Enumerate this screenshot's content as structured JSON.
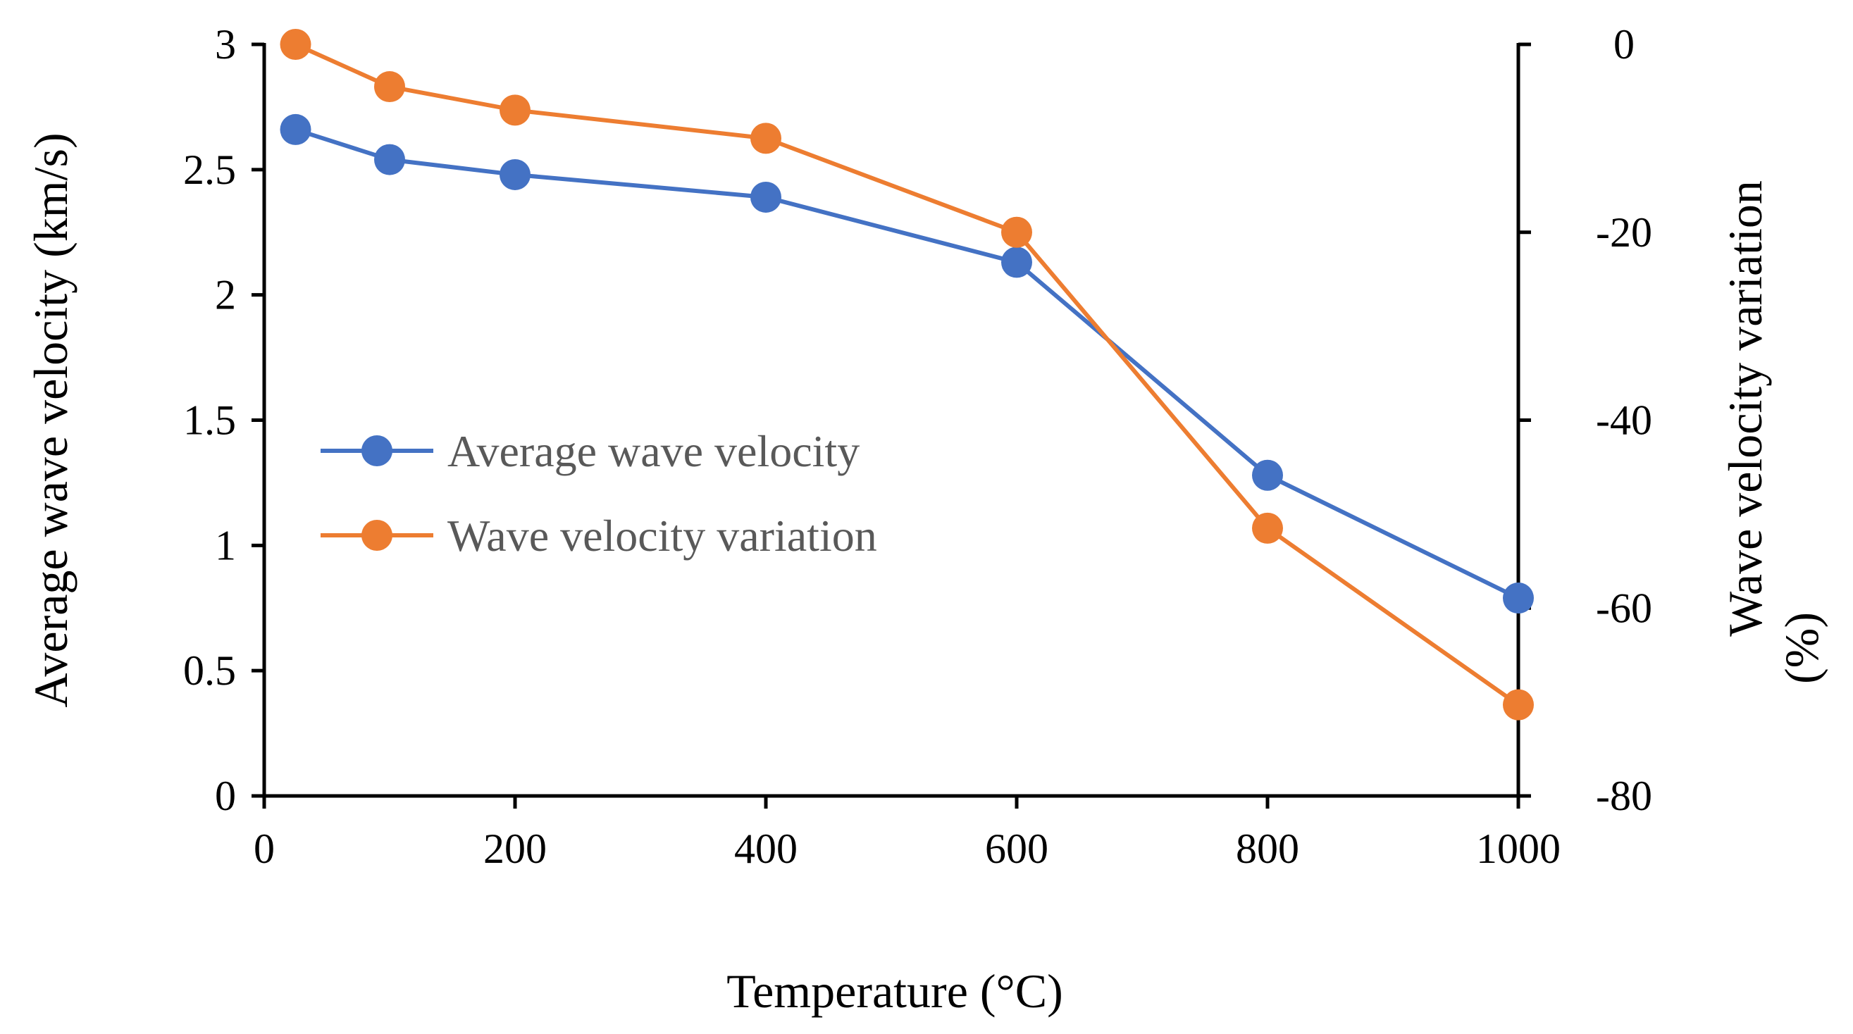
{
  "chart_data": {
    "type": "line",
    "x_axis": {
      "title": "Temperature (°C)",
      "range": [
        0,
        1000
      ],
      "ticks": [
        0,
        200,
        400,
        600,
        800,
        1000
      ],
      "tick_labels": [
        "0",
        "200",
        "400",
        "600",
        "800",
        "1000"
      ]
    },
    "y_axis_left": {
      "title": "Average wave velocity (km/s)",
      "range": [
        0,
        3
      ],
      "ticks": [
        0,
        0.5,
        1,
        1.5,
        2,
        2.5,
        3
      ],
      "tick_labels": [
        "0",
        "0.5",
        "1",
        "1.5",
        "2",
        "2.5",
        "3"
      ]
    },
    "y_axis_right": {
      "title_line1": "Wave velocity variation",
      "title_line2": "(%)",
      "range": [
        -80,
        0
      ],
      "ticks": [
        -80,
        -60,
        -40,
        -20,
        0
      ],
      "tick_labels": [
        "-80",
        "-60",
        "-40",
        "-20",
        "0"
      ]
    },
    "legend_placement": "middle-left",
    "grid": false,
    "series": [
      {
        "name": "Average wave velocity",
        "axis": "left",
        "color": "#4472C4",
        "x": [
          25,
          100,
          200,
          400,
          600,
          800,
          1000
        ],
        "values": [
          2.66,
          2.54,
          2.48,
          2.39,
          2.13,
          1.28,
          0.79
        ]
      },
      {
        "name": "Wave velocity variation",
        "axis": "right",
        "color": "#ED7D31",
        "x": [
          25,
          100,
          200,
          400,
          600,
          800,
          1000
        ],
        "values": [
          0,
          -4.5,
          -7.0,
          -10.0,
          -20.0,
          -51.5,
          -70.3
        ]
      }
    ]
  }
}
